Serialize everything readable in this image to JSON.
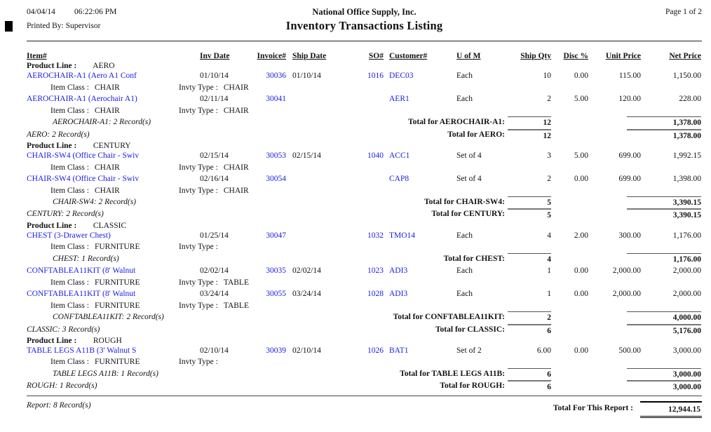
{
  "header": {
    "date": "04/04/14",
    "time": "06:22:06 PM",
    "printed_by": "Printed By: Supervisor",
    "company": "National Office Supply, Inc.",
    "title": "Inventory Transactions Listing",
    "page": "Page 1 of 2"
  },
  "columns": {
    "item": "Item#",
    "inv_date": "Inv Date",
    "invoice": "Invoice#",
    "ship_date": "Ship Date",
    "so": "SO#",
    "customer": "Customer#",
    "uom": "U of M",
    "qty": "Ship Qty",
    "disc": "Disc %",
    "unit": "Unit Price",
    "net": "Net Price"
  },
  "labels": {
    "product_line": "Product Line :",
    "item_class": "Item Class :",
    "invty_type": "Invty Type :"
  },
  "groups": [
    {
      "name": "AERO",
      "items": [
        {
          "rows": [
            {
              "item": "AEROCHAIR-A1 (Aero A1 Conf",
              "inv_date": "01/10/14",
              "invoice": "30036",
              "ship_date": "01/10/14",
              "so": "1016",
              "customer": "DEC03",
              "uom": "Each",
              "qty": "10",
              "disc": "0.00",
              "unit": "115.00",
              "net": "1,150.00",
              "item_class": "CHAIR",
              "invty_type": "CHAIR"
            },
            {
              "item": "AEROCHAIR-A1 (Aerochair A1)",
              "inv_date": "02/11/14",
              "invoice": "30041",
              "ship_date": "",
              "so": "",
              "customer": "AER1",
              "uom": "Each",
              "qty": "2",
              "disc": "5.00",
              "unit": "120.00",
              "net": "228.00",
              "item_class": "CHAIR",
              "invty_type": "CHAIR"
            }
          ],
          "records": "AEROCHAIR-A1: 2 Record(s)",
          "total_label": "Total for AEROCHAIR-A1:",
          "total_qty": "12",
          "total_net": "1,378.00"
        }
      ],
      "records": "AERO: 2 Record(s)",
      "total_label": "Total for AERO:",
      "total_qty": "12",
      "total_net": "1,378.00"
    },
    {
      "name": "CENTURY",
      "items": [
        {
          "rows": [
            {
              "item": "CHAIR-SW4 (Office Chair - Swiv",
              "inv_date": "02/15/14",
              "invoice": "30053",
              "ship_date": "02/15/14",
              "so": "1040",
              "customer": "ACC1",
              "uom": "Set of 4",
              "qty": "3",
              "disc": "5.00",
              "unit": "699.00",
              "net": "1,992.15",
              "item_class": "CHAIR",
              "invty_type": "CHAIR"
            },
            {
              "item": "CHAIR-SW4 (Office Chair - Swiv",
              "inv_date": "02/16/14",
              "invoice": "30054",
              "ship_date": "",
              "so": "",
              "customer": "CAP8",
              "uom": "Set of 4",
              "qty": "2",
              "disc": "0.00",
              "unit": "699.00",
              "net": "1,398.00",
              "item_class": "CHAIR",
              "invty_type": "CHAIR"
            }
          ],
          "records": "CHAIR-SW4: 2 Record(s)",
          "total_label": "Total for CHAIR-SW4:",
          "total_qty": "5",
          "total_net": "3,390.15"
        }
      ],
      "records": "CENTURY: 2 Record(s)",
      "total_label": "Total for CENTURY:",
      "total_qty": "5",
      "total_net": "3,390.15"
    },
    {
      "name": "CLASSIC",
      "items": [
        {
          "rows": [
            {
              "item": "CHEST (3-Drawer Chest)",
              "inv_date": "01/25/14",
              "invoice": "30047",
              "ship_date": "",
              "so": "1032",
              "customer": "TMO14",
              "uom": "Each",
              "qty": "4",
              "disc": "2.00",
              "unit": "300.00",
              "net": "1,176.00",
              "item_class": "FURNITURE",
              "invty_type": ""
            }
          ],
          "records": "CHEST: 1 Record(s)",
          "total_label": "Total for CHEST:",
          "total_qty": "4",
          "total_net": "1,176.00"
        },
        {
          "rows": [
            {
              "item": "CONFTABLEA11KIT (8' Walnut",
              "inv_date": "02/02/14",
              "invoice": "30035",
              "ship_date": "02/02/14",
              "so": "1023",
              "customer": "ADI3",
              "uom": "Each",
              "qty": "1",
              "disc": "0.00",
              "unit": "2,000.00",
              "net": "2,000.00",
              "item_class": "FURNITURE",
              "invty_type": "TABLE"
            },
            {
              "item": "CONFTABLEA11KIT (8' Walnut",
              "inv_date": "03/24/14",
              "invoice": "30055",
              "ship_date": "03/24/14",
              "so": "1028",
              "customer": "ADI3",
              "uom": "Each",
              "qty": "1",
              "disc": "0.00",
              "unit": "2,000.00",
              "net": "2,000.00",
              "item_class": "FURNITURE",
              "invty_type": "TABLE"
            }
          ],
          "records": "CONFTABLEA11KIT: 2 Record(s)",
          "total_label": "Total for CONFTABLEA11KIT:",
          "total_qty": "2",
          "total_net": "4,000.00"
        }
      ],
      "records": "CLASSIC: 3 Record(s)",
      "total_label": "Total for CLASSIC:",
      "total_qty": "6",
      "total_net": "5,176.00"
    },
    {
      "name": "ROUGH",
      "items": [
        {
          "rows": [
            {
              "item": "TABLE LEGS A11B (3' Walnut S",
              "inv_date": "02/10/14",
              "invoice": "30039",
              "ship_date": "02/10/14",
              "so": "1026",
              "customer": "BAT1",
              "uom": "Set of 2",
              "qty": "6.00",
              "disc": "0.00",
              "unit": "500.00",
              "net": "3,000.00",
              "item_class": "FURNITURE",
              "invty_type": ""
            }
          ],
          "records": "TABLE LEGS A11B: 1 Record(s)",
          "total_label": "Total for TABLE LEGS A11B:",
          "total_qty": "6",
          "total_net": "3,000.00"
        }
      ],
      "records": "ROUGH: 1 Record(s)",
      "total_label": "Total for ROUGH:",
      "total_qty": "6",
      "total_net": "3,000.00"
    }
  ],
  "footer": {
    "records": "Report: 8 Record(s)",
    "total_label": "Total For This Report :",
    "total": "12,944.15"
  }
}
